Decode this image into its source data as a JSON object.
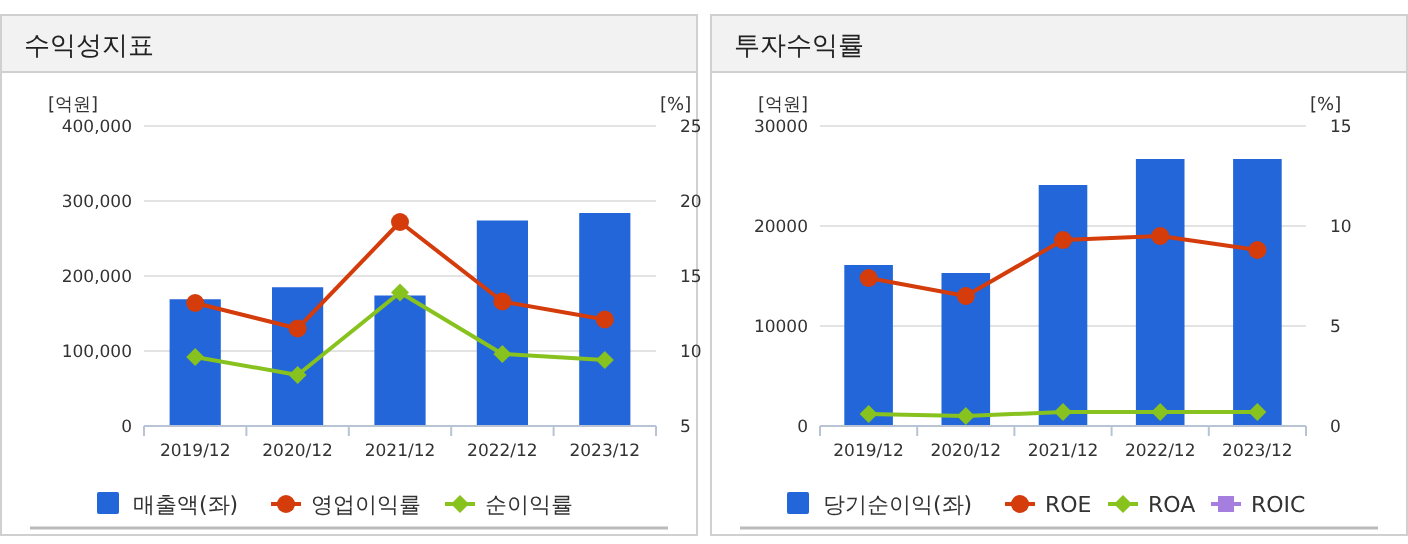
{
  "chart_data": [
    {
      "type": "bar",
      "title": "수익성지표",
      "ylabel": "[억원]",
      "y2label": "[%]",
      "categories": [
        "2019/12",
        "2020/12",
        "2021/12",
        "2022/12",
        "2023/12"
      ],
      "series": [
        {
          "name": "매출액(좌)",
          "color": "#2366d9",
          "values": [
            169000,
            185000,
            174000,
            274000,
            284000
          ]
        },
        {
          "name": "영업이익률",
          "type": "line",
          "axis": "y2",
          "color": "#d43c0c",
          "marker": "circle",
          "values": [
            13.2,
            11.5,
            18.6,
            13.3,
            12.1
          ]
        },
        {
          "name": "순이익률",
          "type": "line",
          "axis": "y2",
          "color": "#88c21e",
          "marker": "diamond",
          "values": [
            9.6,
            8.4,
            13.9,
            9.8,
            9.4
          ]
        }
      ],
      "ylim": [
        0,
        400000
      ],
      "yticks": [
        {
          "value": 0,
          "label": "0"
        },
        {
          "value": 100000,
          "label": "100,000"
        },
        {
          "value": 200000,
          "label": "200,000"
        },
        {
          "value": 300000,
          "label": "300,000"
        },
        {
          "value": 400000,
          "label": "400,000"
        }
      ],
      "y2lim": [
        5,
        25
      ],
      "y2ticks": [
        5,
        10,
        15,
        20,
        25
      ],
      "grid": "y",
      "legend": "bottom"
    },
    {
      "type": "bar",
      "title": "투자수익률",
      "ylabel": "[억원]",
      "y2label": "[%]",
      "categories": [
        "2019/12",
        "2020/12",
        "2021/12",
        "2022/12",
        "2023/12"
      ],
      "series": [
        {
          "name": "당기순이익(좌)",
          "color": "#2366d9",
          "values": [
            16100,
            15300,
            24100,
            26700,
            26700
          ]
        },
        {
          "name": "ROE",
          "type": "line",
          "axis": "y2",
          "color": "#d43c0c",
          "marker": "circle",
          "values": [
            7.4,
            6.5,
            9.3,
            9.5,
            8.8
          ]
        },
        {
          "name": "ROA",
          "type": "line",
          "axis": "y2",
          "color": "#88c21e",
          "marker": "diamond",
          "values": [
            0.6,
            0.5,
            0.7,
            0.7,
            0.7
          ]
        },
        {
          "name": "ROIC",
          "type": "line",
          "axis": "y2",
          "color": "#a57ee0",
          "marker": "square",
          "values": [
            null,
            null,
            null,
            null,
            null
          ]
        }
      ],
      "ylim": [
        0,
        30000
      ],
      "yticks": [
        0,
        10000,
        20000,
        30000
      ],
      "y2lim": [
        0,
        15
      ],
      "y2ticks": [
        0,
        5,
        10,
        15
      ],
      "grid": "y",
      "legend": "bottom"
    }
  ]
}
